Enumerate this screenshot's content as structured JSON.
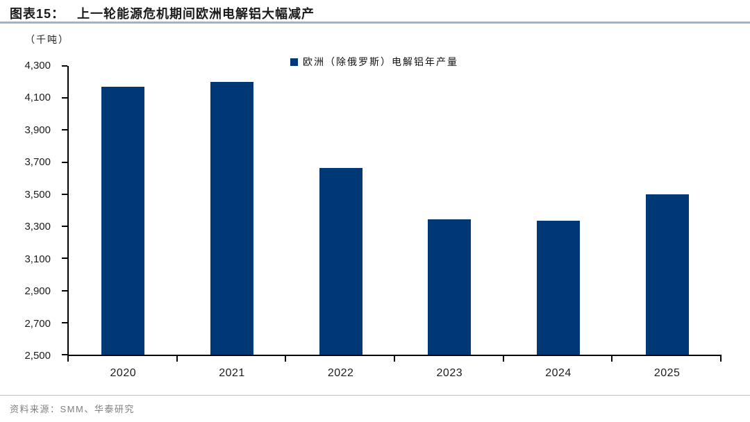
{
  "header": {
    "figure_label": "图表15：",
    "title": "上一轮能源危机期间欧洲电解铝大幅减产"
  },
  "unit_label": "（千吨）",
  "legend": {
    "label": "欧洲（除俄罗斯）电解铝年产量"
  },
  "footer": {
    "source": "资料来源：SMM、华泰研究"
  },
  "colors": {
    "bar": "#003876",
    "underline": "#9fb4cc",
    "axis": "#000000",
    "text": "#1a1a1a",
    "footer_text": "#7f7f7f",
    "divider": "#bfbfbf"
  },
  "chart_data": {
    "type": "bar",
    "title": "上一轮能源危机期间欧洲电解铝大幅减产",
    "categories": [
      "2020",
      "2021",
      "2022",
      "2023",
      "2024",
      "2025"
    ],
    "values": [
      4170,
      4200,
      3665,
      3345,
      3335,
      3500
    ],
    "series_name": "欧洲（除俄罗斯）电解铝年产量",
    "ylabel": "（千吨）",
    "ylim": [
      2500,
      4300
    ],
    "yticks": [
      "2,500",
      "2,700",
      "2,900",
      "3,100",
      "3,300",
      "3,500",
      "3,700",
      "3,900",
      "4,100",
      "4,300"
    ],
    "grid": false,
    "legend_position": "top-center"
  }
}
